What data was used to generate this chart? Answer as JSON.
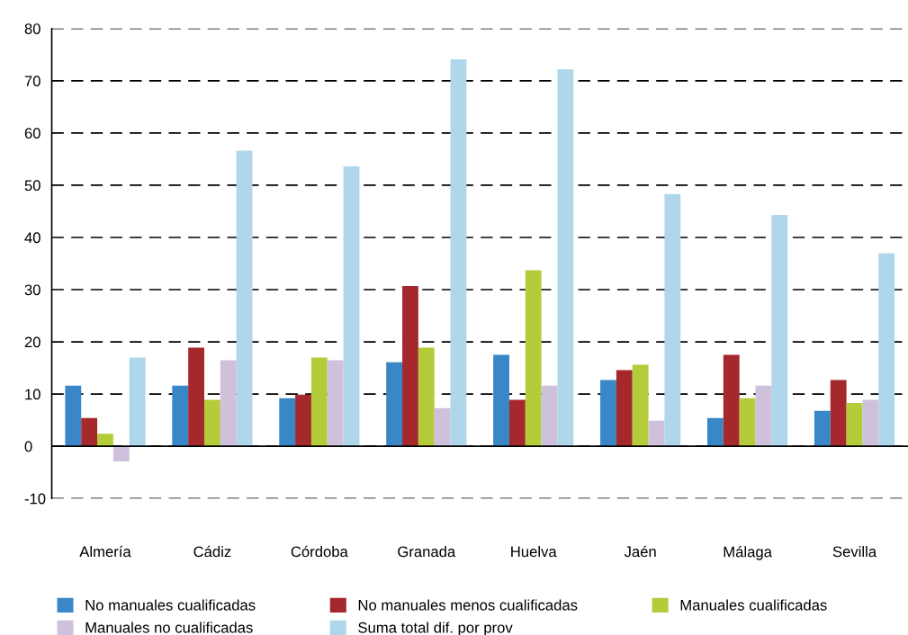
{
  "chart_data": {
    "type": "bar",
    "categories": [
      "Almería",
      "Cádiz",
      "Córdoba",
      "Granada",
      "Huelva",
      "Jaén",
      "Málaga",
      "Sevilla"
    ],
    "series": [
      {
        "name": "No manuales cualificadas",
        "color": "#3a87c8",
        "values": [
          11.6,
          11.6,
          9.2,
          16.1,
          17.5,
          12.7,
          5.4,
          6.8
        ]
      },
      {
        "name": "No manuales menos cualificadas",
        "color": "#a5282c",
        "values": [
          5.4,
          18.9,
          9.9,
          30.7,
          8.9,
          14.6,
          17.5,
          12.7
        ]
      },
      {
        "name": "Manuales cualificadas",
        "color": "#b5cc3a",
        "values": [
          2.4,
          8.9,
          17,
          18.9,
          33.7,
          15.6,
          9.2,
          8.3
        ]
      },
      {
        "name": "Manuales no cualificadas",
        "color": "#cfc0dc",
        "values": [
          -2.9,
          16.5,
          16.5,
          7.3,
          11.6,
          4.9,
          11.6,
          8.9
        ]
      },
      {
        "name": "Suma total dif. por prov",
        "color": "#afd6ea",
        "values": [
          17,
          56.6,
          53.6,
          74.1,
          72.2,
          48.3,
          44.3,
          37
        ]
      }
    ],
    "ylim": [
      -10,
      80
    ],
    "yticks": [
      -10,
      0,
      10,
      20,
      30,
      40,
      50,
      60,
      70,
      80
    ],
    "grid": "y",
    "legend": "bottom",
    "ref_lines": [
      {
        "axis": "y",
        "value": 0,
        "color": "#000000",
        "line_style": "solid"
      }
    ]
  }
}
